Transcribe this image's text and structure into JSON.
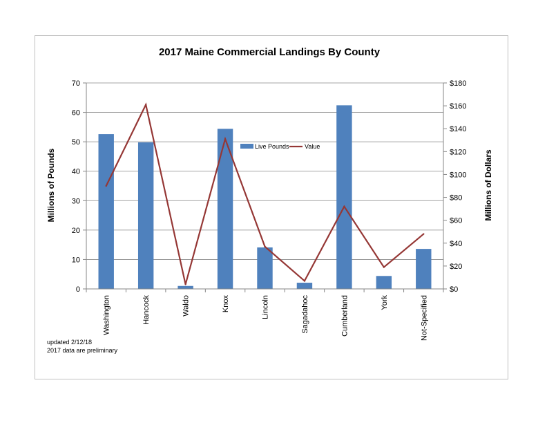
{
  "chart_data": {
    "type": "bar",
    "title": "2017 Maine Commercial Landings By County",
    "categories": [
      "Washington",
      "Hancock",
      "Waldo",
      "Knox",
      "Lincoln",
      "Sagadahoc",
      "Cumberland",
      "York",
      "Not-Specified"
    ],
    "series": [
      {
        "name": "Live Pounds",
        "type": "bar",
        "axis": "left",
        "color": "#4f81bd",
        "values": [
          52.6,
          49.8,
          1.0,
          54.4,
          14.1,
          2.1,
          62.4,
          4.4,
          13.6
        ]
      },
      {
        "name": "Value",
        "type": "line",
        "axis": "right",
        "color": "#953735",
        "values": [
          90,
          161,
          4,
          131,
          37,
          7,
          72,
          19,
          48
        ]
      }
    ],
    "ylabel": "Millions of Pounds",
    "y2label": "Millions of Dollars",
    "ylim": [
      0,
      70
    ],
    "y2lim": [
      0,
      180
    ],
    "yticks": [
      "0",
      "10",
      "20",
      "30",
      "40",
      "50",
      "60",
      "70"
    ],
    "y2ticks": [
      "$0",
      "$20",
      "$40",
      "$60",
      "$80",
      "$100",
      "$120",
      "$140",
      "$160",
      "$180"
    ],
    "grid": true,
    "legend": "top-center"
  },
  "notes": {
    "updated": "updated 2/12/18",
    "preliminary": "2017 data are preliminary"
  }
}
